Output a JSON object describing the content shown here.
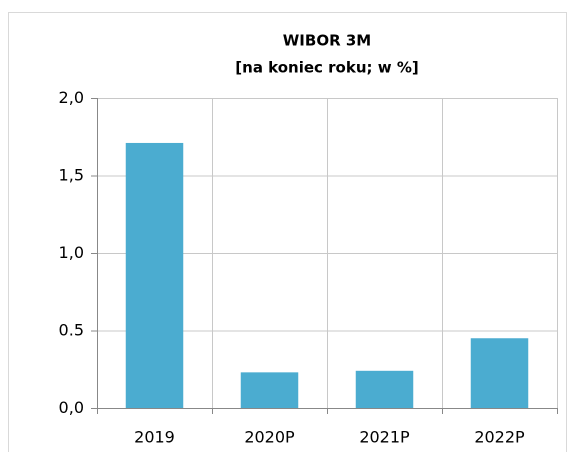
{
  "chart_data": {
    "type": "bar",
    "title": "WIBOR 3M",
    "subtitle": "[na koniec roku; w %]",
    "categories": [
      "2019",
      "2020P",
      "2021P",
      "2022P"
    ],
    "values": [
      1.71,
      0.23,
      0.24,
      0.45
    ],
    "color": "#4bacd0",
    "ylim": [
      0,
      2
    ],
    "yticks": [
      {
        "value": 0,
        "label": "0,0"
      },
      0.5,
      {
        "value": 1,
        "label": "1,0"
      },
      {
        "value": 1.5,
        "label": "1,5"
      },
      {
        "value": 2,
        "label": "2,0"
      }
    ],
    "grid": true
  }
}
